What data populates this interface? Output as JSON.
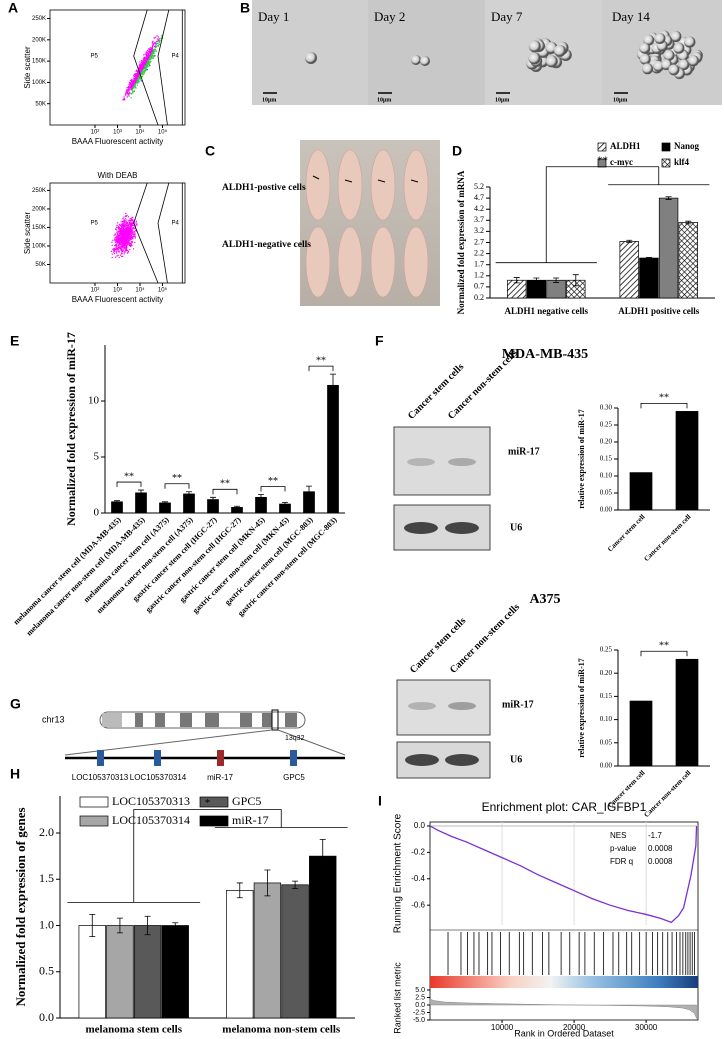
{
  "panel_labels": [
    "A",
    "B",
    "C",
    "D",
    "E",
    "F",
    "G",
    "H",
    "I"
  ],
  "panel_b": {
    "frames": [
      {
        "day": "Day 1",
        "scale": "10μm"
      },
      {
        "day": "Day 2",
        "scale": "10μm"
      },
      {
        "day": "Day 7",
        "scale": "10μm"
      },
      {
        "day": "Day 14",
        "scale": "10μm"
      }
    ]
  },
  "panel_c": {
    "rows": [
      "ALDH1-postive cells",
      "ALDH1-negative cells"
    ]
  },
  "panel_f": {
    "blots": [
      {
        "title": "MDA-MB-435",
        "lanes": [
          "Cancer stem cells",
          "Cancer non-stem cells"
        ],
        "bands": [
          "miR-17",
          "U6"
        ]
      },
      {
        "title": "A375",
        "lanes": [
          "Cancer stem cells",
          "Cancer non-stem cells"
        ],
        "bands": [
          "miR-17",
          "U6"
        ]
      }
    ]
  },
  "panel_g": {
    "chromosome": "chr13",
    "band": "13q32",
    "genes": [
      "LOC105370313",
      "LOC105370314",
      "miR-17",
      "GPC5"
    ]
  },
  "chart_data": [
    {
      "type": "flow",
      "xlabel": "BAAA Fluorescent activity",
      "ylabel": "Side scatter",
      "gates": [
        "P5",
        "P4"
      ],
      "xscale": "log",
      "xlim": [
        1,
        1000000
      ],
      "xticks": [
        {
          "value": 100,
          "label": "10²"
        },
        {
          "value": 1000,
          "label": "10³"
        },
        {
          "value": 10000,
          "label": "10⁴"
        },
        {
          "value": 100000,
          "label": "10⁵"
        }
      ],
      "ylim": [
        0,
        270000
      ],
      "yticks": [
        {
          "value": 50000,
          "label": "50K"
        },
        {
          "value": 100000,
          "label": "100K"
        },
        {
          "value": 150000,
          "label": "150K"
        },
        {
          "value": 200000,
          "label": "200K"
        },
        {
          "value": 250000,
          "label": "250K"
        }
      ],
      "colors": [
        "#ff00ff",
        "#2ecc40",
        "#1f3fbf"
      ]
    },
    {
      "type": "flow",
      "title": "With DEAB",
      "xlabel": "BAAA Fluorescent activity",
      "ylabel": "Side scatter",
      "gates": [
        "P5",
        "P4"
      ],
      "xscale": "log",
      "xlim": [
        1,
        1000000
      ],
      "xticks": [
        {
          "value": 100,
          "label": "10²"
        },
        {
          "value": 1000,
          "label": "10³"
        },
        {
          "value": 10000,
          "label": "10⁴"
        },
        {
          "value": 100000,
          "label": "10⁵"
        }
      ],
      "ylim": [
        0,
        270000
      ],
      "yticks": [
        {
          "value": 50000,
          "label": "50K"
        },
        {
          "value": 100000,
          "label": "100K"
        },
        {
          "value": 150000,
          "label": "150K"
        },
        {
          "value": 200000,
          "label": "200K"
        },
        {
          "value": 250000,
          "label": "250K"
        }
      ],
      "colors": [
        "#ff00ff"
      ]
    },
    {
      "type": "bar",
      "ylabel": "Normalized fold expression of mRNA",
      "categories": [
        "ALDH1 negative cells",
        "ALDH1 positive cells"
      ],
      "series": [
        {
          "name": "ALDH1",
          "color": "#000000",
          "pattern": "diagonal",
          "values": [
            1,
            2.75
          ],
          "errors": [
            0.12,
            0.05
          ]
        },
        {
          "name": "Nanog",
          "color": "#000000",
          "pattern": "solid",
          "values": [
            1,
            2
          ],
          "errors": [
            0.1,
            0.03
          ]
        },
        {
          "name": "c-myc",
          "color": "#808080",
          "pattern": "solid",
          "values": [
            1,
            4.7
          ],
          "errors": [
            0.1,
            0.06
          ]
        },
        {
          "name": "klf4",
          "color": "#000000",
          "pattern": "cross",
          "values": [
            1,
            3.6
          ],
          "errors": [
            0.25,
            0.06
          ]
        }
      ],
      "ylim": [
        0.2,
        5.2
      ],
      "yticks": [
        0.2,
        0.7,
        1.2,
        1.7,
        2.2,
        2.7,
        3.2,
        3.7,
        4.2,
        4.7,
        5.2
      ],
      "annotations": [
        "**"
      ]
    },
    {
      "type": "bar",
      "ylabel": "Normalized fold expression of miR-17",
      "categories": [
        "melanoma cancer stem cell (MDA-MB-435)",
        "melanoma cancer non-stem cell (MDA-MB-435)",
        "melanoma cancer stem cell (A375)",
        "melanoma cancer non-stem cell (A375)",
        "gastric cancer stem cell (HGC-27)",
        "gastric cancer non-stem cell (HGC-27)",
        "gastric cancer stem cell (MKN-45)",
        "gastric cancer non-stem cell (MKN-45)",
        "gastric cancer stem cell (MGC-803)",
        "gastric cancer non-stem cell (MGC-803)"
      ],
      "values": [
        1.0,
        1.8,
        0.9,
        1.7,
        1.2,
        0.5,
        1.4,
        0.8,
        1.9,
        11.4
      ],
      "errors": [
        0.1,
        0.25,
        0.1,
        0.2,
        0.2,
        0.1,
        0.25,
        0.15,
        0.5,
        1.0
      ],
      "color": "#000000",
      "ylim": [
        0,
        15
      ],
      "yticks": [
        0,
        5,
        10
      ],
      "annotations": [
        "**",
        "**",
        "**",
        "**",
        "**"
      ]
    },
    {
      "type": "bar",
      "ylabel": "relative expression of miR-17",
      "categories": [
        "Cancer stem cell",
        "Cancer non-stem cell"
      ],
      "values": [
        0.11,
        0.29
      ],
      "color": "#000000",
      "ylim": [
        0,
        0.3
      ],
      "yticks": [
        {
          "value": 0,
          "label": "0.00"
        },
        {
          "value": 0.05,
          "label": "0.05"
        },
        {
          "value": 0.1,
          "label": "0.10"
        },
        {
          "value": 0.15,
          "label": "0.15"
        },
        {
          "value": 0.2,
          "label": "0.20"
        },
        {
          "value": 0.25,
          "label": "0.25"
        },
        {
          "value": 0.3,
          "label": "0.30"
        }
      ],
      "annotations": [
        "**"
      ]
    },
    {
      "type": "bar",
      "ylabel": "relative expression of miR-17",
      "categories": [
        "Cancer stem cell",
        "Cancer non-stem cell"
      ],
      "values": [
        0.14,
        0.23
      ],
      "color": "#000000",
      "ylim": [
        0,
        0.25
      ],
      "yticks": [
        {
          "value": 0,
          "label": "0.00"
        },
        {
          "value": 0.05,
          "label": "0.05"
        },
        {
          "value": 0.1,
          "label": "0.10"
        },
        {
          "value": 0.15,
          "label": "0.15"
        },
        {
          "value": 0.2,
          "label": "0.20"
        },
        {
          "value": 0.25,
          "label": "0.25"
        }
      ],
      "annotations": [
        "**"
      ]
    },
    {
      "type": "bar",
      "ylabel": "Normalized fold expression of genes",
      "categories": [
        "melanoma stem cells",
        "melanoma non-stem cells"
      ],
      "series": [
        {
          "name": "LOC105370313",
          "color": "#ffffff",
          "values": [
            1.0,
            1.38
          ],
          "errors": [
            0.12,
            0.08
          ]
        },
        {
          "name": "LOC105370314",
          "color": "#a6a6a6",
          "values": [
            1.0,
            1.46
          ],
          "errors": [
            0.08,
            0.14
          ]
        },
        {
          "name": "GPC5",
          "color": "#595959",
          "values": [
            1.0,
            1.44
          ],
          "errors": [
            0.1,
            0.04
          ]
        },
        {
          "name": "miR-17",
          "color": "#000000",
          "values": [
            1.0,
            1.75
          ],
          "errors": [
            0.03,
            0.18
          ]
        }
      ],
      "ylim": [
        0,
        2.4
      ],
      "yticks": [
        {
          "value": 0,
          "label": "0.0"
        },
        {
          "value": 0.5,
          "label": "0.5"
        },
        {
          "value": 1,
          "label": "1.0"
        },
        {
          "value": 1.5,
          "label": "1.5"
        },
        {
          "value": 2,
          "label": "2.0"
        }
      ],
      "annotations": [
        "*"
      ]
    },
    {
      "type": "gsea",
      "title": "Enrichment plot: CAR_IGFBP1",
      "ylabel": "Running Enrichment Score",
      "stats": [
        [
          "NES",
          "-1.7"
        ],
        [
          "p-value",
          "0.0008"
        ],
        [
          "FDR q",
          "0.0008"
        ]
      ],
      "color": "#7b2fd6",
      "x": [
        0,
        1000,
        3000,
        5000,
        7500,
        10000,
        12500,
        15000,
        17500,
        20000,
        22500,
        25000,
        27500,
        30000,
        32000,
        33500,
        34500,
        35200,
        35700,
        36200,
        36600,
        36900,
        37000
      ],
      "values": [
        0,
        -0.03,
        -0.08,
        -0.12,
        -0.18,
        -0.24,
        -0.3,
        -0.37,
        -0.43,
        -0.49,
        -0.55,
        -0.6,
        -0.64,
        -0.67,
        -0.7,
        -0.73,
        -0.68,
        -0.62,
        -0.5,
        -0.38,
        -0.25,
        -0.15,
        0
      ],
      "ylim": [
        -0.75,
        0.03
      ],
      "yticks": [
        {
          "value": 0,
          "label": "0.0"
        },
        -0.2,
        -0.4,
        -0.6
      ],
      "hits": [
        2500,
        4300,
        5200,
        6100,
        6800,
        8000,
        8600,
        9800,
        11000,
        12400,
        13000,
        14200,
        15600,
        16500,
        18200,
        19400,
        20700,
        21500,
        22800,
        24100,
        25400,
        26200,
        27300,
        28000,
        29100,
        30000,
        30900,
        31600,
        32300,
        33000,
        33600,
        34200,
        34700,
        35100,
        35500,
        35800,
        36100,
        36400,
        36700
      ],
      "xlim": [
        0,
        37200
      ],
      "xticks": [
        10000,
        20000,
        30000
      ],
      "xlabel": "Rank in Ordered Dataset",
      "metric_label": "Ranked list metric",
      "metric_x": [
        0,
        500,
        2000,
        5000,
        10000,
        15000,
        20000,
        25000,
        30000,
        33000,
        35000,
        36000,
        36700,
        37000
      ],
      "metric_values": [
        2,
        1.5,
        1,
        0.7,
        0.4,
        0.2,
        0,
        -0.15,
        -0.35,
        -0.6,
        -1,
        -1.6,
        -2.8,
        -4.5
      ],
      "metric_ylim": [
        -5,
        5
      ],
      "metric_yticks": [
        {
          "value": 5,
          "label": "5.0"
        },
        2.5,
        {
          "value": 0,
          "label": "0.0"
        },
        -2.5,
        {
          "value": -5,
          "label": "-5.0"
        }
      ]
    }
  ]
}
